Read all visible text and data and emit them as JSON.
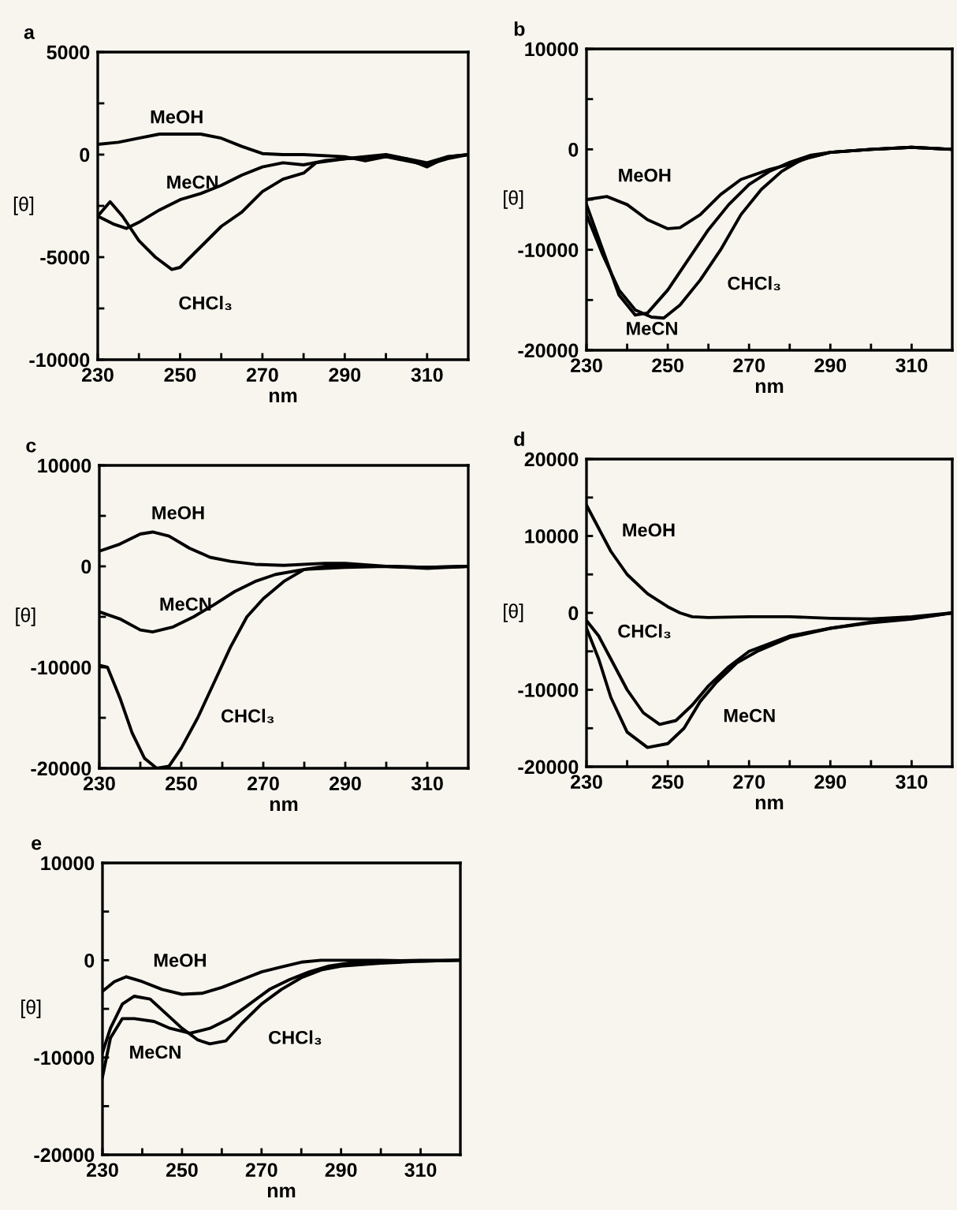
{
  "chart_data": [
    {
      "type": "line",
      "title": "a",
      "xlabel": "nm",
      "ylabel": "[θ]",
      "xlim": [
        230,
        320
      ],
      "ylim": [
        -10000,
        5000
      ],
      "xticks": [
        230,
        {
          "value": 240,
          "label": null
        },
        250,
        {
          "value": 260,
          "label": null
        },
        270,
        {
          "value": 280,
          "label": null
        },
        290,
        {
          "value": 300,
          "label": null
        },
        310
      ],
      "yticks": [
        -10000,
        {
          "value": -7500,
          "label": null
        },
        -5000,
        {
          "value": -2500,
          "label": null
        },
        0,
        {
          "value": 2500,
          "label": null
        },
        5000
      ],
      "grid": false,
      "marker": "none",
      "line_style": "solid",
      "series": [
        {
          "color": "#000000",
          "x": [
            230,
            235,
            240,
            245,
            250,
            255,
            260,
            265,
            270,
            275,
            280,
            290,
            295,
            300,
            305,
            310,
            315,
            320
          ],
          "values": [
            500,
            600,
            800,
            1000,
            1000,
            1000,
            800,
            400,
            50,
            0,
            0,
            -100,
            -300,
            -100,
            -200,
            -600,
            -100,
            0
          ]
        },
        {
          "color": "#000000",
          "x": [
            230,
            234,
            237,
            240,
            245,
            250,
            255,
            260,
            265,
            270,
            275,
            280,
            285,
            290,
            300,
            305,
            310,
            315,
            320
          ],
          "values": [
            -3000,
            -3400,
            -3600,
            -3300,
            -2700,
            -2200,
            -1900,
            -1500,
            -1000,
            -600,
            -400,
            -500,
            -300,
            -200,
            -100,
            -300,
            -500,
            -200,
            0
          ]
        },
        {
          "color": "#000000",
          "x": [
            230,
            233,
            236,
            240,
            244,
            248,
            250,
            255,
            260,
            265,
            270,
            275,
            280,
            283,
            290,
            300,
            305,
            310,
            315,
            320
          ],
          "values": [
            -3000,
            -2300,
            -3000,
            -4200,
            -5000,
            -5600,
            -5500,
            -4500,
            -3500,
            -2800,
            -1800,
            -1200,
            -900,
            -400,
            -200,
            0,
            -200,
            -400,
            -100,
            0
          ]
        }
      ],
      "annotations": [
        {
          "text": "MeOH",
          "x": 240,
          "y": 800
        },
        {
          "text": "MeCN",
          "x": 245,
          "y": -2700
        },
        {
          "text": "CHCl₃",
          "x": 248,
          "y": -5600
        }
      ]
    },
    {
      "type": "line",
      "title": "b",
      "xlabel": "nm",
      "ylabel": "[θ]",
      "xlim": [
        230,
        320
      ],
      "ylim": [
        -20000,
        10000
      ],
      "xticks": [
        230,
        {
          "value": 240,
          "label": null
        },
        250,
        {
          "value": 260,
          "label": null
        },
        270,
        {
          "value": 280,
          "label": null
        },
        290,
        {
          "value": 300,
          "label": null
        },
        310
      ],
      "yticks": [
        -20000,
        {
          "value": -15000,
          "label": null
        },
        -10000,
        {
          "value": -5000,
          "label": null
        },
        0,
        {
          "value": 5000,
          "label": null
        },
        10000
      ],
      "grid": false,
      "marker": "none",
      "line_style": "solid",
      "series": [
        {
          "color": "#000000",
          "x": [
            230,
            235,
            240,
            245,
            250,
            253,
            258,
            263,
            268,
            275,
            280,
            285,
            290,
            300,
            310,
            320
          ],
          "values": [
            -5000,
            -4700,
            -5500,
            -7000,
            -7900,
            -7800,
            -6500,
            -4500,
            -3000,
            -2000,
            -1500,
            -800,
            -300,
            0,
            200,
            0
          ]
        },
        {
          "color": "#000000",
          "x": [
            230,
            234,
            238,
            242,
            245,
            250,
            255,
            260,
            265,
            270,
            275,
            280,
            285,
            290,
            300,
            310,
            320
          ],
          "values": [
            -5500,
            -10000,
            -14500,
            -16500,
            -16300,
            -14000,
            -11000,
            -8000,
            -5500,
            -3500,
            -2200,
            -1300,
            -600,
            -300,
            0,
            200,
            0
          ]
        },
        {
          "color": "#000000",
          "x": [
            230,
            234,
            238,
            242,
            246,
            249,
            253,
            258,
            263,
            268,
            273,
            278,
            283,
            290,
            300,
            310,
            320
          ],
          "values": [
            -6500,
            -10500,
            -14000,
            -16000,
            -16700,
            -16800,
            -15500,
            -13000,
            -10000,
            -6500,
            -4000,
            -2200,
            -1000,
            -300,
            0,
            200,
            0
          ]
        }
      ],
      "annotations": [
        {
          "text": "MeOH",
          "x": 235,
          "y": -4700
        },
        {
          "text": "MeCN",
          "x": 238,
          "y": -14500
        },
        {
          "text": "CHCl₃",
          "x": 263,
          "y": -10000
        }
      ]
    },
    {
      "type": "line",
      "title": "c",
      "xlabel": "nm",
      "ylabel": "[θ]",
      "xlim": [
        230,
        320
      ],
      "ylim": [
        -20000,
        10000
      ],
      "xticks": [
        230,
        {
          "value": 240,
          "label": null
        },
        250,
        {
          "value": 260,
          "label": null
        },
        270,
        {
          "value": 280,
          "label": null
        },
        290,
        {
          "value": 300,
          "label": null
        },
        310
      ],
      "yticks": [
        -20000,
        {
          "value": -15000,
          "label": null
        },
        -10000,
        {
          "value": -5000,
          "label": null
        },
        0,
        {
          "value": 5000,
          "label": null
        },
        10000
      ],
      "grid": false,
      "marker": "none",
      "line_style": "solid",
      "series": [
        {
          "color": "#000000",
          "x": [
            230,
            235,
            240,
            243,
            247,
            252,
            257,
            262,
            268,
            275,
            285,
            290,
            300,
            310,
            320
          ],
          "values": [
            1500,
            2200,
            3200,
            3400,
            3000,
            1800,
            900,
            500,
            200,
            100,
            300,
            300,
            0,
            -200,
            0
          ]
        },
        {
          "color": "#000000",
          "x": [
            230,
            235,
            240,
            243,
            248,
            253,
            258,
            263,
            268,
            273,
            280,
            290,
            300,
            310,
            320
          ],
          "values": [
            -4500,
            -5200,
            -6300,
            -6500,
            -6000,
            -5000,
            -3800,
            -2500,
            -1500,
            -800,
            -300,
            -100,
            0,
            -100,
            0
          ]
        },
        {
          "color": "#000000",
          "x": [
            230,
            232,
            235,
            238,
            241,
            244,
            247,
            250,
            254,
            258,
            262,
            266,
            270,
            275,
            280,
            285,
            290,
            300,
            310,
            320
          ],
          "values": [
            -9800,
            -10000,
            -13000,
            -16500,
            -19000,
            -20000,
            -19800,
            -18000,
            -15000,
            -11500,
            -8000,
            -5000,
            -3200,
            -1500,
            -300,
            0,
            0,
            0,
            -100,
            0
          ]
        }
      ],
      "annotations": [
        {
          "text": "MeOH",
          "x": 240,
          "y": 3200
        },
        {
          "text": "MeCN",
          "x": 243,
          "y": -6500
        },
        {
          "text": "CHCl₃",
          "x": 258,
          "y": -11500
        }
      ]
    },
    {
      "type": "line",
      "title": "d",
      "xlabel": "nm",
      "ylabel": "[θ]",
      "xlim": [
        230,
        320
      ],
      "ylim": [
        -20000,
        20000
      ],
      "xticks": [
        230,
        {
          "value": 240,
          "label": null
        },
        250,
        {
          "value": 260,
          "label": null
        },
        270,
        {
          "value": 280,
          "label": null
        },
        290,
        {
          "value": 300,
          "label": null
        },
        310
      ],
      "yticks": [
        -20000,
        {
          "value": -15000,
          "label": null
        },
        -10000,
        {
          "value": -5000,
          "label": null
        },
        0,
        {
          "value": 5000,
          "label": null
        },
        10000,
        {
          "value": 15000,
          "label": null
        },
        20000
      ],
      "grid": false,
      "marker": "none",
      "line_style": "solid",
      "series": [
        {
          "color": "#000000",
          "x": [
            230,
            233,
            236,
            240,
            245,
            250,
            253,
            256,
            260,
            270,
            280,
            290,
            300,
            310,
            320
          ],
          "values": [
            14000,
            11000,
            8000,
            5000,
            2500,
            800,
            0,
            -500,
            -600,
            -500,
            -500,
            -700,
            -800,
            -500,
            0
          ]
        },
        {
          "color": "#000000",
          "x": [
            230,
            233,
            236,
            240,
            245,
            250,
            254,
            258,
            262,
            267,
            272,
            280,
            290,
            300,
            310,
            320
          ],
          "values": [
            -2000,
            -6000,
            -11000,
            -15500,
            -17500,
            -17000,
            -15000,
            -11500,
            -9000,
            -6500,
            -5000,
            -3200,
            -2000,
            -1300,
            -800,
            0
          ]
        },
        {
          "color": "#000000",
          "x": [
            230,
            233,
            236,
            240,
            244,
            248,
            252,
            256,
            260,
            265,
            270,
            280,
            290,
            300,
            310,
            320
          ],
          "values": [
            -1000,
            -3000,
            -6000,
            -10000,
            -13000,
            -14500,
            -14000,
            -12000,
            -9500,
            -7000,
            -5000,
            -3000,
            -2000,
            -1200,
            -700,
            0
          ]
        }
      ],
      "annotations": [
        {
          "text": "MeOH",
          "x": 236,
          "y": 8000
        },
        {
          "text": "CHCl₃",
          "x": 236,
          "y": -6000
        },
        {
          "text": "MeCN",
          "x": 262,
          "y": -9000
        }
      ]
    },
    {
      "type": "line",
      "title": "e",
      "xlabel": "nm",
      "ylabel": "[θ]",
      "xlim": [
        230,
        320
      ],
      "ylim": [
        -20000,
        10000
      ],
      "xticks": [
        230,
        {
          "value": 240,
          "label": null
        },
        250,
        {
          "value": 260,
          "label": null
        },
        270,
        {
          "value": 280,
          "label": null
        },
        290,
        {
          "value": 300,
          "label": null
        },
        310
      ],
      "yticks": [
        -20000,
        {
          "value": -15000,
          "label": null
        },
        -10000,
        {
          "value": -5000,
          "label": null
        },
        0,
        {
          "value": 5000,
          "label": null
        },
        10000
      ],
      "grid": false,
      "marker": "none",
      "line_style": "solid",
      "series": [
        {
          "color": "#000000",
          "x": [
            230,
            233,
            236,
            240,
            245,
            250,
            255,
            260,
            265,
            270,
            275,
            280,
            285,
            290,
            300,
            310,
            320
          ],
          "values": [
            -3200,
            -2200,
            -1700,
            -2200,
            -3000,
            -3500,
            -3400,
            -2800,
            -2000,
            -1200,
            -700,
            -200,
            0,
            0,
            0,
            -100,
            0
          ]
        },
        {
          "color": "#000000",
          "x": [
            230,
            232,
            235,
            238,
            243,
            247,
            252,
            257,
            262,
            267,
            272,
            277,
            282,
            287,
            292,
            300,
            310,
            320
          ],
          "values": [
            -12000,
            -8000,
            -6000,
            -6000,
            -6300,
            -7000,
            -7500,
            -7000,
            -6000,
            -4500,
            -3000,
            -2000,
            -1200,
            -600,
            -300,
            -100,
            0,
            0
          ]
        },
        {
          "color": "#000000",
          "x": [
            230,
            232,
            235,
            238,
            242,
            246,
            250,
            254,
            257,
            261,
            265,
            270,
            275,
            280,
            285,
            290,
            300,
            310,
            320
          ],
          "values": [
            -9500,
            -7000,
            -4500,
            -3700,
            -4000,
            -5500,
            -7000,
            -8200,
            -8600,
            -8300,
            -6500,
            -4500,
            -3000,
            -1800,
            -1000,
            -600,
            -300,
            -100,
            0
          ]
        }
      ],
      "annotations": [
        {
          "text": "MeOH",
          "x": 240,
          "y": -2200
        },
        {
          "text": "MeCN",
          "x": 235,
          "y": -6000
        },
        {
          "text": "CHCl₃",
          "x": 270,
          "y": -4500
        }
      ]
    }
  ]
}
